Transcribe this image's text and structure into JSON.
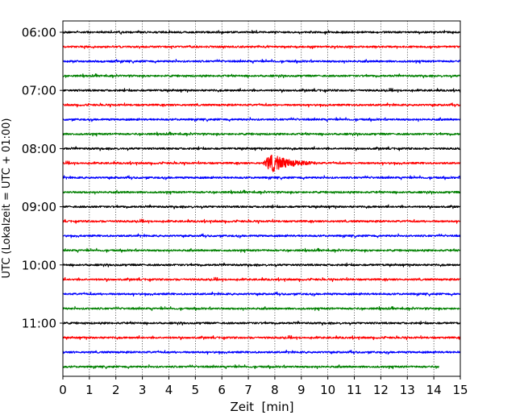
{
  "chart_data": {
    "type": "line",
    "subtype": "helicorder-seismogram",
    "title": "",
    "xlabel": "Zeit  [min]",
    "ylabel": "UTC (Lokalzeit = UTC + 01:00)",
    "xlim": [
      0,
      15
    ],
    "x_ticks": [
      "0",
      "1",
      "2",
      "3",
      "4",
      "5",
      "6",
      "7",
      "8",
      "9",
      "10",
      "11",
      "12",
      "13",
      "14",
      "15"
    ],
    "y_tick_labels": [
      "06:00",
      "07:00",
      "08:00",
      "09:00",
      "10:00",
      "11:00"
    ],
    "grid": "vertical dotted lines at each minute",
    "trace_colors": [
      "#000000",
      "#ff0000",
      "#0000ff",
      "#008000"
    ],
    "trace_interval_minutes": 15,
    "trace_start_times": [
      "06:00",
      "06:15",
      "06:30",
      "06:45",
      "07:00",
      "07:15",
      "07:30",
      "07:45",
      "08:00",
      "08:15",
      "08:30",
      "08:45",
      "09:00",
      "09:15",
      "09:30",
      "09:45",
      "10:00",
      "10:15",
      "10:30",
      "10:45",
      "11:00",
      "11:15",
      "11:30",
      "11:45"
    ],
    "last_trace_end_minute": 14.2,
    "event": {
      "trace_start": "08:15",
      "start_minute": 7.55,
      "peak_minute": 7.85,
      "end_minute": 9.6,
      "relative_amplitude": 3.5
    }
  }
}
